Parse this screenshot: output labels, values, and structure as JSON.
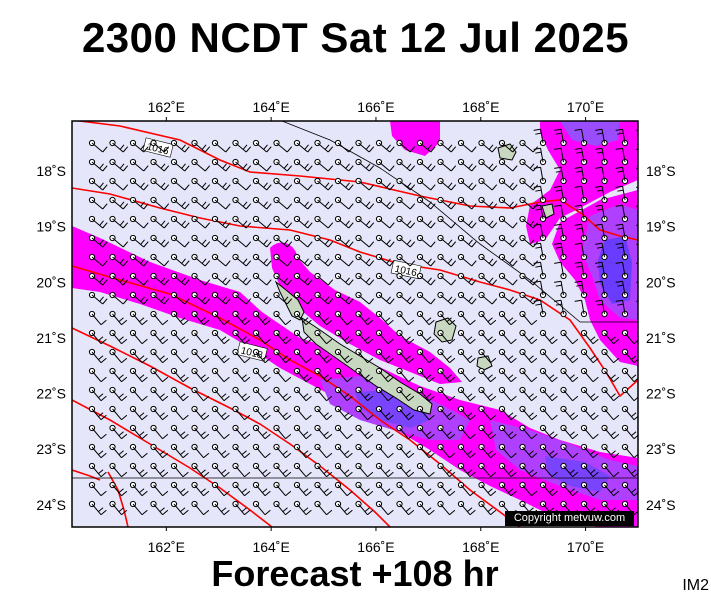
{
  "title": "2300 NCDT Sat 12 Jul 2025",
  "subtitle": "Forecast +108 hr",
  "image_code": "IM2",
  "copyright": "Copyright metvuw.com",
  "map": {
    "lon_range": [
      160.2,
      171.0
    ],
    "lat_range": [
      -24.4,
      -17.1
    ],
    "lon_ticks": [
      {
        "value": 162,
        "label": "162˚E"
      },
      {
        "value": 164,
        "label": "164˚E"
      },
      {
        "value": 166,
        "label": "166˚E"
      },
      {
        "value": 168,
        "label": "168˚E"
      },
      {
        "value": 170,
        "label": "170˚E"
      }
    ],
    "lat_ticks": [
      {
        "value": -18,
        "label": "18˚S"
      },
      {
        "value": -19,
        "label": "19˚S"
      },
      {
        "value": -20,
        "label": "20˚S"
      },
      {
        "value": -21,
        "label": "21˚S"
      },
      {
        "value": -22,
        "label": "22˚S"
      },
      {
        "value": -23,
        "label": "23˚S"
      },
      {
        "value": -24,
        "label": "24˚S"
      }
    ],
    "isobar_labels": [
      "1016",
      "1016",
      "1018"
    ],
    "colors": {
      "background": "#e6e6fa",
      "rain_light": "#ff00ff",
      "rain_medium": "#cc33ff",
      "rain_heavy": "#6633ff",
      "isobar": "#ff0000",
      "land": "#c8d8c0"
    }
  }
}
